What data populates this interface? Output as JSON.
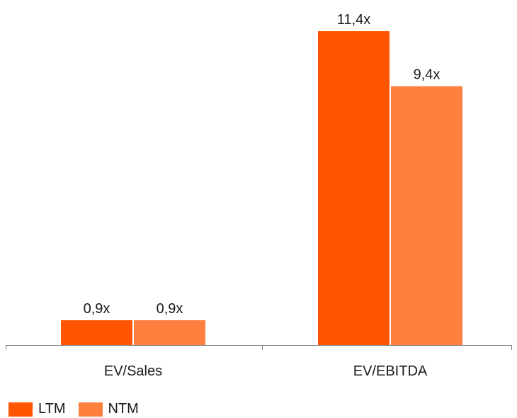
{
  "chart_data": {
    "type": "bar",
    "title": "",
    "xlabel": "",
    "ylabel": "",
    "categories": [
      "EV/Sales",
      "EV/EBITDA"
    ],
    "series": [
      {
        "name": "LTM",
        "color": "#FF5500",
        "values": [
          0.9,
          11.4
        ],
        "labels": [
          "0,9x",
          "11,4x"
        ]
      },
      {
        "name": "NTM",
        "color": "#FF7F3F",
        "values": [
          0.9,
          9.4
        ],
        "labels": [
          "0,9x",
          "9,4x"
        ]
      }
    ],
    "ylim": [
      0,
      11.4
    ],
    "grid": false,
    "legend": "bottom-left"
  }
}
